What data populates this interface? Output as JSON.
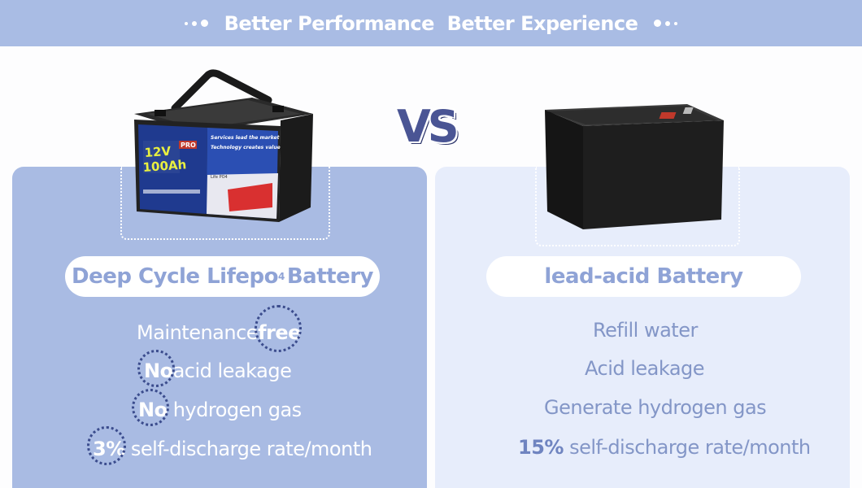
{
  "banner": {
    "title": "Better Performance  Better Experience"
  },
  "vs_text": "VS",
  "left": {
    "product_label": "Deep Cycle Lifepo",
    "product_label_sub": "4",
    "product_label_suffix": "Battery",
    "battery_image": {
      "voltage": "12V",
      "capacity": "100Ah",
      "badge": "PRO",
      "slogan_1": "Services lead the market",
      "slogan_2": "Technology creates value",
      "chem": "Life PO4"
    },
    "features": [
      {
        "prefix": "Maintenance",
        "highlight": "free",
        "suffix": ""
      },
      {
        "prefix": "",
        "highlight": "No",
        "suffix": "acid leakage"
      },
      {
        "prefix": "",
        "highlight": "No",
        "suffix": "hydrogen gas"
      },
      {
        "prefix": "",
        "highlight": "3%",
        "suffix": " self-discharge rate/month"
      }
    ]
  },
  "right": {
    "product_label": "lead-acid Battery",
    "features": [
      {
        "text": "Refill water"
      },
      {
        "text": "Acid leakage"
      },
      {
        "text": "Generate hydrogen gas"
      },
      {
        "highlight": "15%",
        "text": " self-discharge rate/month"
      }
    ]
  },
  "colors": {
    "banner_bg": "#a9bce4",
    "left_panel": "#a9bbe3",
    "right_panel": "#e7edfb",
    "highlight_circle": "#3b4c8d"
  }
}
